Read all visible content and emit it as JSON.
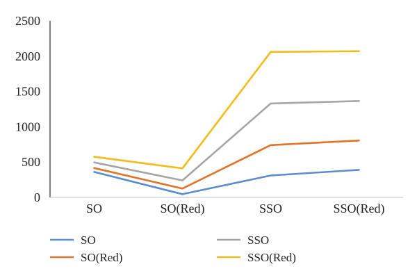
{
  "chart_data": {
    "type": "line",
    "categories": [
      "SO",
      "SO(Red)",
      "SSO",
      "SSO(Red)"
    ],
    "series": [
      {
        "name": "SO",
        "color": "#5B8BD0",
        "values": [
          360,
          45,
          310,
          390
        ]
      },
      {
        "name": "SO(Red)",
        "color": "#E07328",
        "values": [
          415,
          125,
          740,
          805
        ]
      },
      {
        "name": "SSO",
        "color": "#A5A5A5",
        "values": [
          495,
          240,
          1330,
          1365
        ]
      },
      {
        "name": "SSO(Red)",
        "color": "#F2BB1A",
        "values": [
          575,
          410,
          2060,
          2070
        ]
      }
    ],
    "ylim": [
      0,
      2500
    ],
    "yticks": [
      0,
      500,
      1000,
      1500,
      2000,
      2500
    ],
    "yticks_labels": [
      "0",
      "500",
      "1000",
      "1500",
      "2000",
      "2500"
    ],
    "grid": false,
    "legend_position": "bottom"
  }
}
